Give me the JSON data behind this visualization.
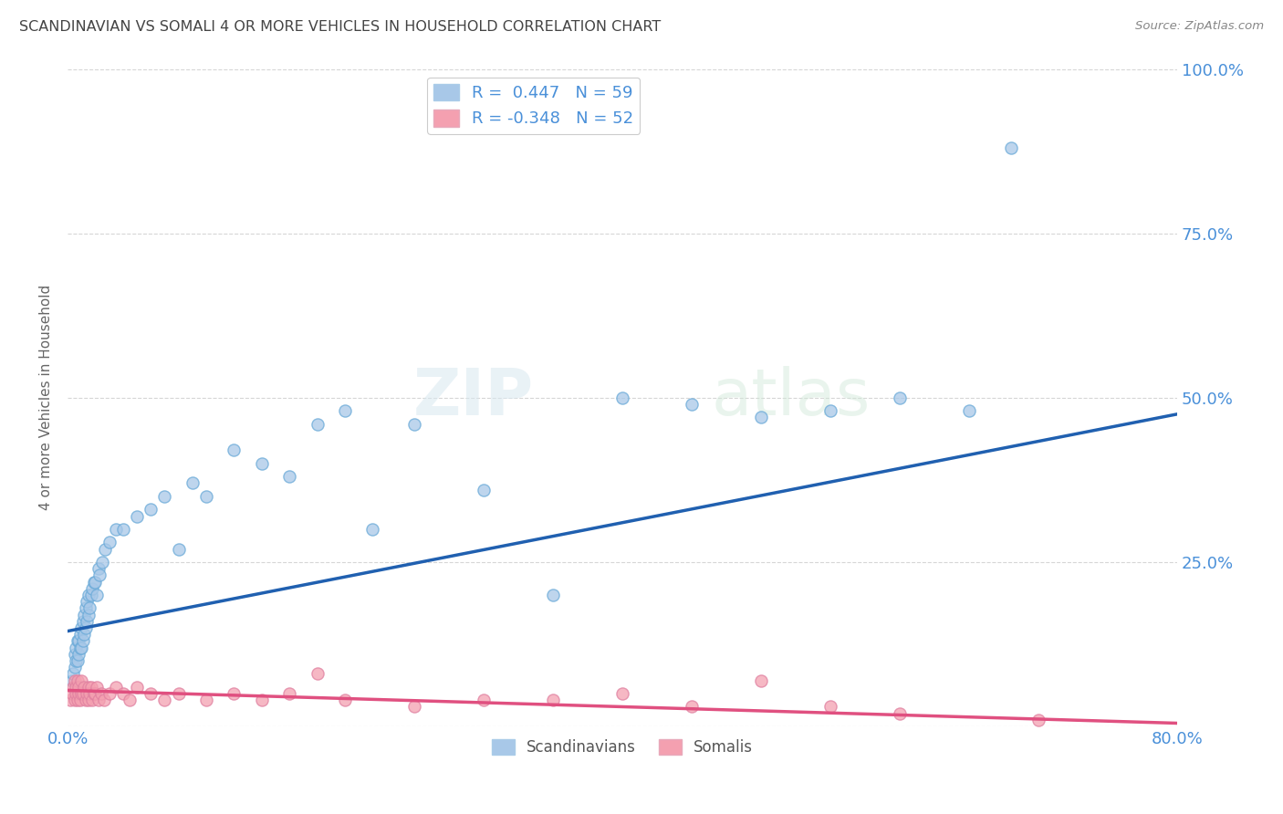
{
  "title": "SCANDINAVIAN VS SOMALI 4 OR MORE VEHICLES IN HOUSEHOLD CORRELATION CHART",
  "source": "Source: ZipAtlas.com",
  "ylabel": "4 or more Vehicles in Household",
  "yticks_right": [
    "100.0%",
    "75.0%",
    "50.0%",
    "25.0%"
  ],
  "yticks_right_vals": [
    1.0,
    0.75,
    0.5,
    0.25
  ],
  "legend_label1": "R =  0.447   N = 59",
  "legend_label2": "R = -0.348   N = 52",
  "scatter_blue_color": "#a8c8e8",
  "scatter_pink_color": "#f4a0b0",
  "line_blue_color": "#2060b0",
  "line_pink_color": "#e05080",
  "background_color": "#ffffff",
  "grid_color": "#cccccc",
  "title_color": "#444444",
  "axis_label_color": "#4a90d9",
  "watermark_zip": "ZIP",
  "watermark_atlas": "atlas",
  "scandinavian_x": [
    0.3,
    0.4,
    0.5,
    0.5,
    0.6,
    0.6,
    0.7,
    0.7,
    0.8,
    0.8,
    0.9,
    0.9,
    1.0,
    1.0,
    1.1,
    1.1,
    1.2,
    1.2,
    1.3,
    1.3,
    1.4,
    1.4,
    1.5,
    1.5,
    1.6,
    1.7,
    1.8,
    1.9,
    2.0,
    2.1,
    2.2,
    2.3,
    2.5,
    2.7,
    3.0,
    3.5,
    4.0,
    5.0,
    6.0,
    7.0,
    8.0,
    9.0,
    10.0,
    12.0,
    14.0,
    16.0,
    18.0,
    20.0,
    22.0,
    25.0,
    30.0,
    35.0,
    40.0,
    45.0,
    50.0,
    55.0,
    60.0,
    65.0,
    68.0
  ],
  "scandinavian_y": [
    0.07,
    0.08,
    0.09,
    0.11,
    0.1,
    0.12,
    0.1,
    0.13,
    0.11,
    0.13,
    0.12,
    0.14,
    0.12,
    0.15,
    0.13,
    0.16,
    0.14,
    0.17,
    0.15,
    0.18,
    0.16,
    0.19,
    0.17,
    0.2,
    0.18,
    0.2,
    0.21,
    0.22,
    0.22,
    0.2,
    0.24,
    0.23,
    0.25,
    0.27,
    0.28,
    0.3,
    0.3,
    0.32,
    0.33,
    0.35,
    0.27,
    0.37,
    0.35,
    0.42,
    0.4,
    0.38,
    0.46,
    0.48,
    0.3,
    0.46,
    0.36,
    0.2,
    0.5,
    0.49,
    0.47,
    0.48,
    0.5,
    0.48,
    0.88
  ],
  "somali_x": [
    0.2,
    0.3,
    0.4,
    0.5,
    0.5,
    0.6,
    0.6,
    0.7,
    0.7,
    0.8,
    0.8,
    0.9,
    1.0,
    1.0,
    1.1,
    1.2,
    1.3,
    1.4,
    1.5,
    1.5,
    1.6,
    1.7,
    1.8,
    1.9,
    2.0,
    2.1,
    2.2,
    2.4,
    2.6,
    3.0,
    3.5,
    4.0,
    4.5,
    5.0,
    6.0,
    7.0,
    8.0,
    10.0,
    12.0,
    14.0,
    16.0,
    18.0,
    20.0,
    25.0,
    30.0,
    35.0,
    40.0,
    45.0,
    50.0,
    55.0,
    60.0,
    70.0
  ],
  "somali_y": [
    0.04,
    0.05,
    0.06,
    0.04,
    0.07,
    0.05,
    0.06,
    0.04,
    0.07,
    0.05,
    0.06,
    0.04,
    0.05,
    0.07,
    0.05,
    0.06,
    0.04,
    0.05,
    0.06,
    0.04,
    0.05,
    0.06,
    0.04,
    0.05,
    0.05,
    0.06,
    0.04,
    0.05,
    0.04,
    0.05,
    0.06,
    0.05,
    0.04,
    0.06,
    0.05,
    0.04,
    0.05,
    0.04,
    0.05,
    0.04,
    0.05,
    0.08,
    0.04,
    0.03,
    0.04,
    0.04,
    0.05,
    0.03,
    0.07,
    0.03,
    0.02,
    0.01
  ],
  "xmin": 0.0,
  "xmax": 80.0,
  "ymin": 0.0,
  "ymax": 1.0,
  "blue_line_x0": 0.0,
  "blue_line_y0": 0.145,
  "blue_line_x1": 80.0,
  "blue_line_y1": 0.475,
  "pink_line_x0": 0.0,
  "pink_line_y0": 0.055,
  "pink_line_x1": 80.0,
  "pink_line_y1": 0.005
}
